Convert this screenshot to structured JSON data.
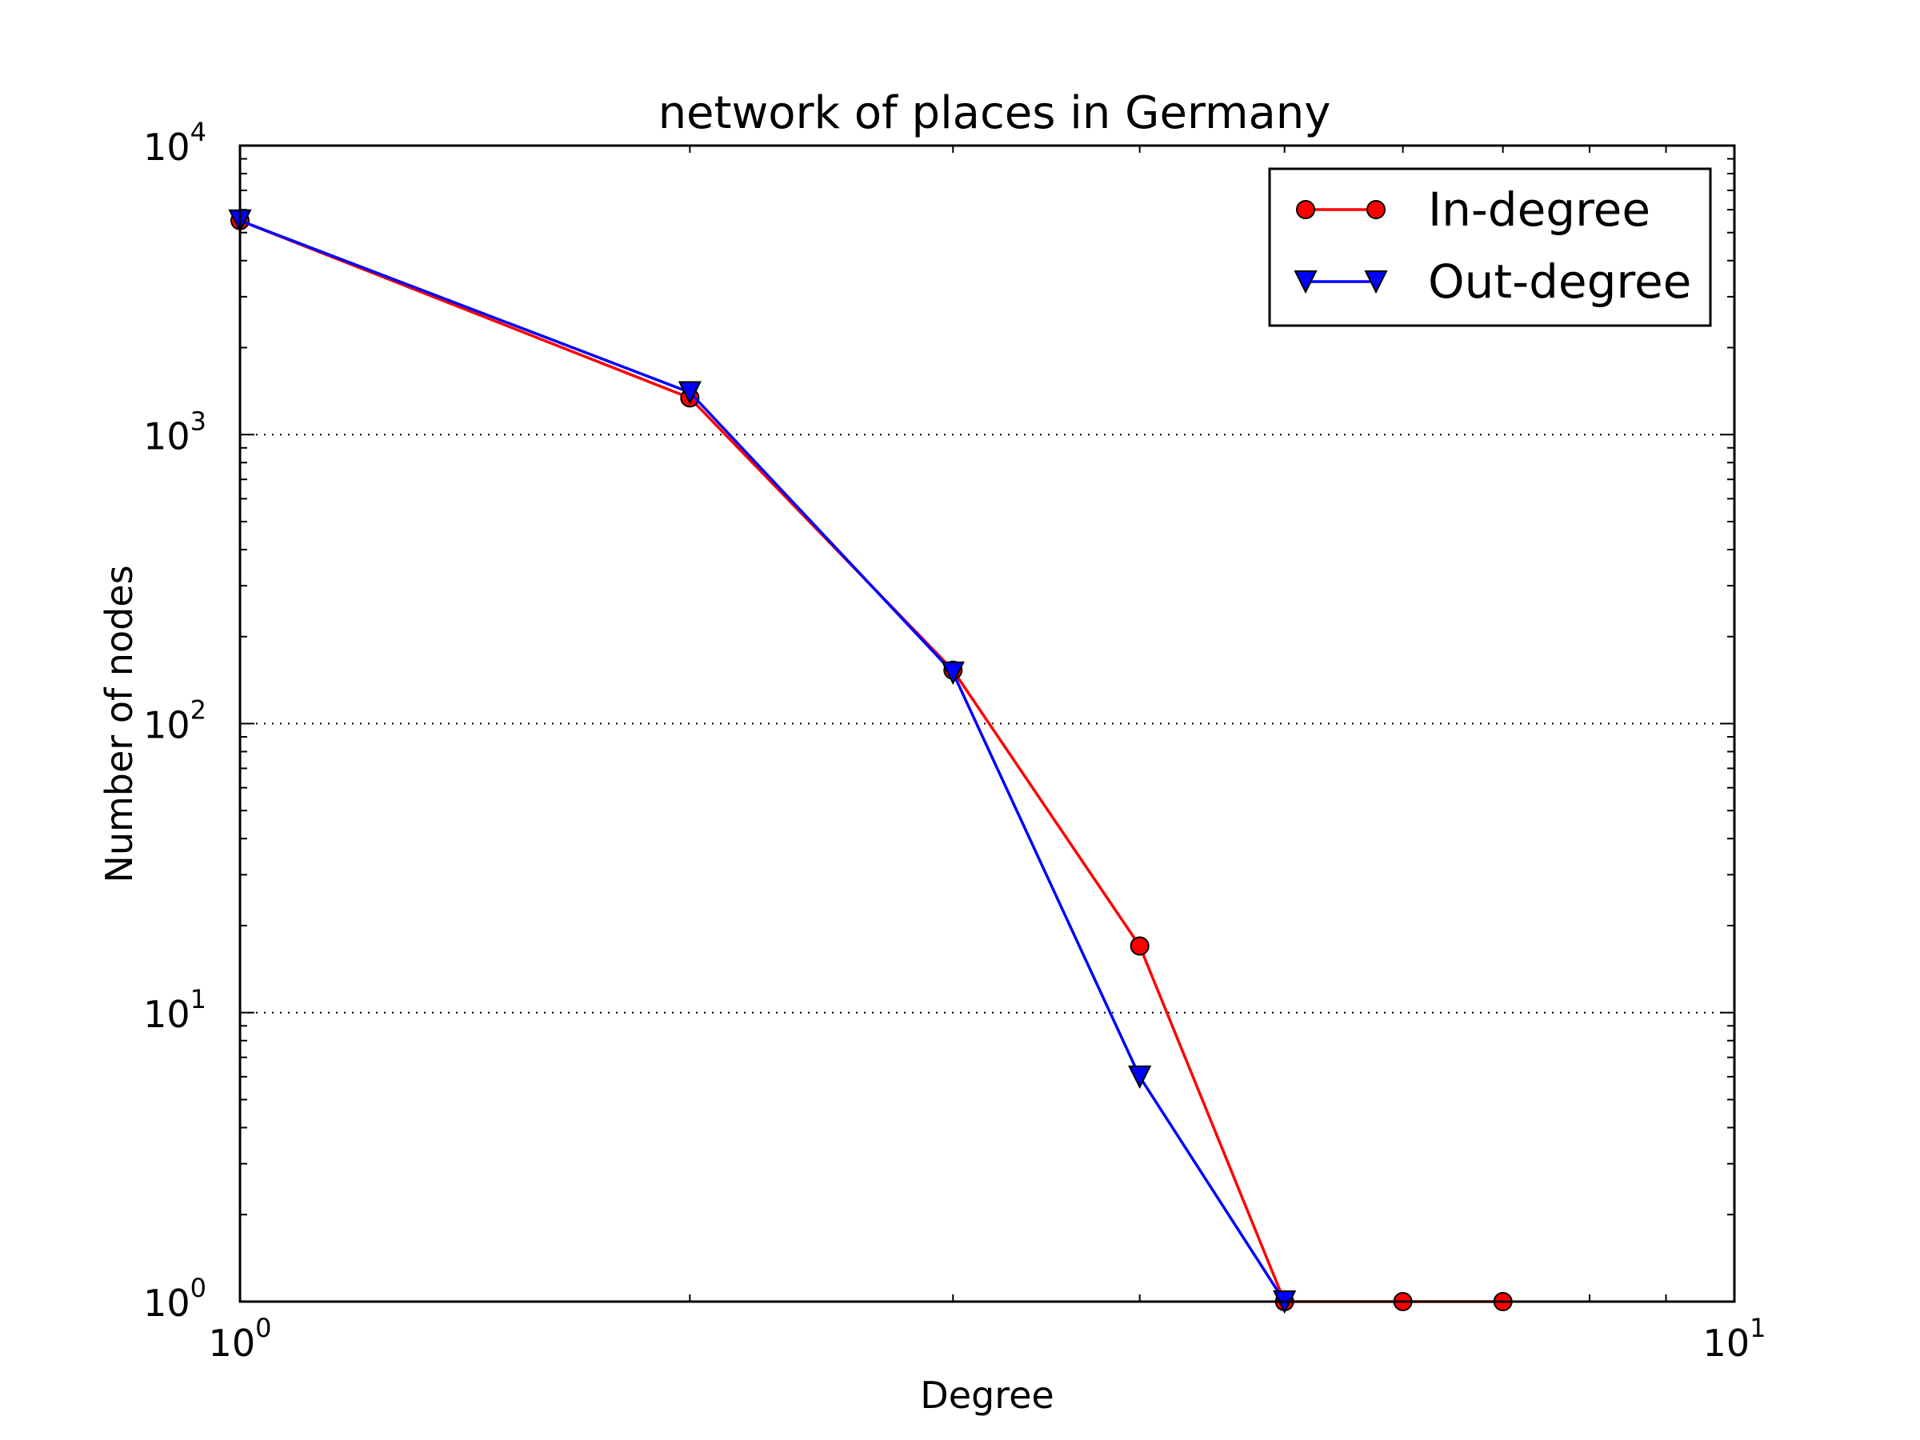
{
  "chart_data": {
    "type": "line",
    "title": "network of places in Germany",
    "xlabel": "Degree",
    "ylabel": "Number of nodes",
    "xscale": "log",
    "yscale": "log",
    "xlim": [
      1,
      10
    ],
    "ylim": [
      1,
      10000
    ],
    "x_major_ticks": [
      {
        "value": 1,
        "base": "10",
        "exp": "0"
      },
      {
        "value": 10,
        "base": "10",
        "exp": "1"
      }
    ],
    "y_major_ticks": [
      {
        "value": 1,
        "base": "10",
        "exp": "0"
      },
      {
        "value": 10,
        "base": "10",
        "exp": "1"
      },
      {
        "value": 100,
        "base": "10",
        "exp": "2"
      },
      {
        "value": 1000,
        "base": "10",
        "exp": "3"
      },
      {
        "value": 10000,
        "base": "10",
        "exp": "4"
      }
    ],
    "grid": "y-major dotted",
    "legend_position": "top-right",
    "series": [
      {
        "name": "In-degree",
        "color": "#ff0000",
        "marker": "circle",
        "points": [
          {
            "x": 1,
            "y": 5500
          },
          {
            "x": 2,
            "y": 1340
          },
          {
            "x": 3,
            "y": 153
          },
          {
            "x": 4,
            "y": 17
          },
          {
            "x": 5,
            "y": 1
          },
          {
            "x": 6,
            "y": 1
          },
          {
            "x": 7,
            "y": 1
          }
        ]
      },
      {
        "name": "Out-degree",
        "color": "#0000ff",
        "marker": "triangle-down",
        "points": [
          {
            "x": 1,
            "y": 5500
          },
          {
            "x": 2,
            "y": 1400
          },
          {
            "x": 3,
            "y": 150
          },
          {
            "x": 4,
            "y": 6
          },
          {
            "x": 5,
            "y": 1
          }
        ]
      }
    ]
  }
}
